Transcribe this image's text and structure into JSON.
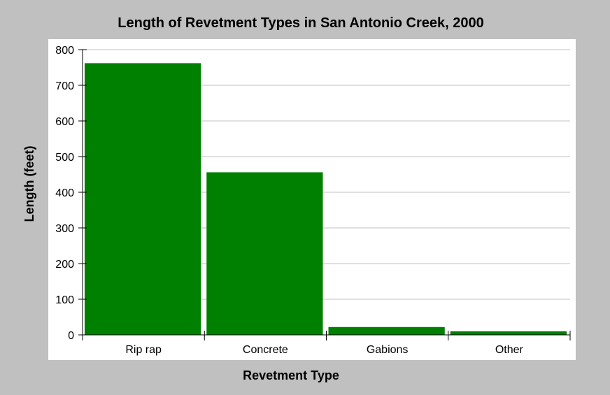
{
  "chart_data": {
    "type": "bar",
    "title": "Length of Revetment Types in San Antonio Creek, 2000",
    "xlabel": "Revetment Type",
    "ylabel": "Length (feet)",
    "categories": [
      "Rip rap",
      "Concrete",
      "Gabions",
      "Other"
    ],
    "values": [
      762,
      456,
      22,
      10
    ],
    "ylim": [
      0,
      800
    ],
    "yticks": [
      0,
      100,
      200,
      300,
      400,
      500,
      600,
      700,
      800
    ],
    "grid": "horizontal",
    "bar_color": "#008000",
    "plot_background": "#ffffff",
    "page_background": "#c0c0c0",
    "gridline_color": "#c0c0c0"
  }
}
